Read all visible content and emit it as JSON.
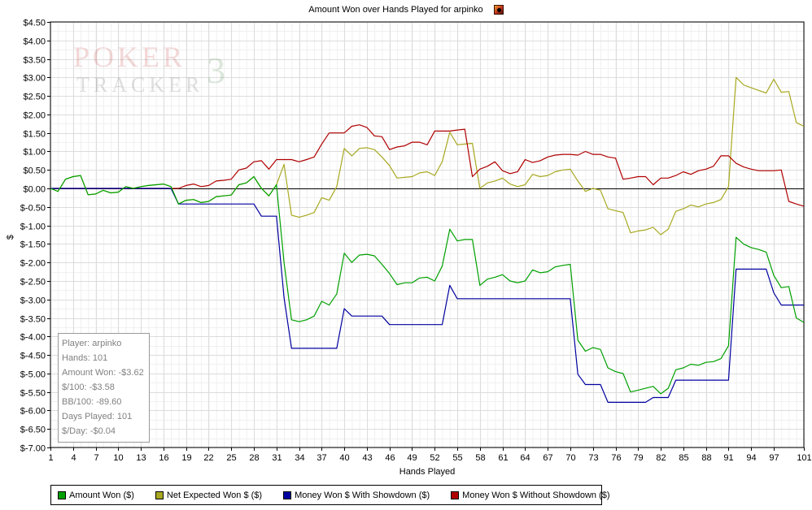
{
  "chart_data": {
    "type": "line",
    "title": "Amount Won over Hands Played for arpinko",
    "xlabel": "Hands Played",
    "ylabel": "$",
    "xlim": [
      1,
      101
    ],
    "ylim": [
      -7.0,
      4.5
    ],
    "y_ticks": [
      4.5,
      4.0,
      3.5,
      3.0,
      2.5,
      2.0,
      1.5,
      1.0,
      0.5,
      0.0,
      -0.5,
      -1.0,
      -1.5,
      -2.0,
      -2.5,
      -3.0,
      -3.5,
      -4.0,
      -4.5,
      -5.0,
      -5.5,
      -6.0,
      -6.5,
      -7.0
    ],
    "y_tick_labels": [
      "$4.50",
      "$4.00",
      "$3.50",
      "$3.00",
      "$2.50",
      "$2.00",
      "$1.50",
      "$1.00",
      "$0.50",
      "$0.00",
      "$-0.50",
      "$-1.00",
      "$-1.50",
      "$-2.00",
      "$-2.50",
      "$-3.00",
      "$-3.50",
      "$-4.00",
      "$-4.50",
      "$-5.00",
      "$-5.50",
      "$-6.00",
      "$-6.50",
      "$-7.00"
    ],
    "x_ticks": [
      1,
      4,
      7,
      10,
      13,
      16,
      19,
      22,
      25,
      28,
      31,
      34,
      37,
      40,
      43,
      46,
      49,
      52,
      55,
      58,
      61,
      64,
      67,
      70,
      73,
      76,
      79,
      82,
      85,
      88,
      91,
      94,
      97,
      101
    ],
    "grid": true,
    "legend_position": "bottom",
    "x": [
      1,
      2,
      3,
      4,
      5,
      6,
      7,
      8,
      9,
      10,
      11,
      12,
      13,
      14,
      15,
      16,
      17,
      18,
      19,
      20,
      21,
      22,
      23,
      24,
      25,
      26,
      27,
      28,
      29,
      30,
      31,
      32,
      33,
      34,
      35,
      36,
      37,
      38,
      39,
      40,
      41,
      42,
      43,
      44,
      45,
      46,
      47,
      48,
      49,
      50,
      51,
      52,
      53,
      54,
      55,
      56,
      57,
      58,
      59,
      60,
      61,
      62,
      63,
      64,
      65,
      66,
      67,
      68,
      69,
      70,
      71,
      72,
      73,
      74,
      75,
      76,
      77,
      78,
      79,
      80,
      81,
      82,
      83,
      84,
      85,
      86,
      87,
      88,
      89,
      90,
      91,
      92,
      93,
      94,
      95,
      96,
      97,
      98,
      99,
      100,
      101
    ],
    "series": [
      {
        "name": "Amount Won ($)",
        "color": "#00a000",
        "values": [
          0.0,
          -0.08,
          0.25,
          0.32,
          0.35,
          -0.17,
          -0.15,
          -0.05,
          -0.12,
          -0.1,
          0.05,
          0.0,
          0.05,
          0.08,
          0.1,
          0.12,
          0.05,
          -0.42,
          -0.32,
          -0.3,
          -0.38,
          -0.35,
          -0.22,
          -0.2,
          -0.18,
          0.1,
          0.15,
          0.32,
          0.0,
          -0.2,
          0.1,
          -2.0,
          -3.55,
          -3.6,
          -3.55,
          -3.45,
          -3.05,
          -3.15,
          -2.85,
          -1.75,
          -2.0,
          -1.8,
          -1.78,
          -1.82,
          -2.05,
          -2.3,
          -2.6,
          -2.55,
          -2.55,
          -2.42,
          -2.4,
          -2.5,
          -2.1,
          -1.1,
          -1.42,
          -1.38,
          -1.38,
          -2.62,
          -2.45,
          -2.4,
          -2.33,
          -2.5,
          -2.55,
          -2.5,
          -2.2,
          -2.28,
          -2.25,
          -2.12,
          -2.08,
          -2.05,
          -4.1,
          -4.4,
          -4.3,
          -4.35,
          -4.85,
          -4.95,
          -5.0,
          -5.5,
          -5.45,
          -5.4,
          -5.35,
          -5.55,
          -5.4,
          -4.9,
          -4.85,
          -4.75,
          -4.78,
          -4.7,
          -4.68,
          -4.6,
          -4.25,
          -1.32,
          -1.5,
          -1.6,
          -1.65,
          -1.72,
          -2.35,
          -2.68,
          -2.65,
          -3.5,
          -3.62
        ]
      },
      {
        "name": "Net Expected Won $ ($)",
        "color": "#a8a820",
        "values": [
          0.0,
          -0.08,
          0.25,
          0.32,
          0.35,
          -0.17,
          -0.15,
          -0.05,
          -0.12,
          -0.1,
          0.05,
          0.0,
          0.05,
          0.08,
          0.1,
          0.12,
          0.05,
          -0.42,
          -0.32,
          -0.3,
          -0.38,
          -0.35,
          -0.22,
          -0.2,
          -0.18,
          0.1,
          0.15,
          0.32,
          0.0,
          -0.2,
          0.1,
          0.65,
          -0.72,
          -0.78,
          -0.72,
          -0.65,
          -0.25,
          -0.32,
          0.05,
          1.08,
          0.88,
          1.08,
          1.1,
          1.05,
          0.85,
          0.62,
          0.28,
          0.3,
          0.32,
          0.42,
          0.45,
          0.35,
          0.72,
          1.52,
          1.18,
          1.2,
          1.22,
          0.0,
          0.15,
          0.2,
          0.28,
          0.12,
          0.05,
          0.1,
          0.38,
          0.32,
          0.35,
          0.45,
          0.5,
          0.52,
          0.2,
          -0.08,
          0.0,
          -0.05,
          -0.55,
          -0.6,
          -0.65,
          -1.2,
          -1.15,
          -1.12,
          -1.05,
          -1.25,
          -1.1,
          -0.62,
          -0.55,
          -0.45,
          -0.5,
          -0.42,
          -0.38,
          -0.3,
          0.05,
          3.0,
          2.8,
          2.72,
          2.65,
          2.58,
          2.95,
          2.6,
          2.62,
          1.78,
          1.68
        ]
      },
      {
        "name": "Money Won $ With Showdown ($)",
        "color": "#0000a0",
        "values": [
          0.0,
          0.0,
          0.0,
          0.0,
          0.0,
          0.0,
          0.0,
          0.0,
          0.0,
          0.0,
          0.0,
          0.0,
          0.0,
          0.0,
          0.0,
          0.0,
          0.0,
          -0.42,
          -0.42,
          -0.42,
          -0.42,
          -0.42,
          -0.42,
          -0.42,
          -0.42,
          -0.42,
          -0.42,
          -0.42,
          -0.75,
          -0.75,
          -0.75,
          -2.95,
          -4.32,
          -4.32,
          -4.32,
          -4.32,
          -4.32,
          -4.32,
          -4.32,
          -3.25,
          -3.45,
          -3.45,
          -3.45,
          -3.45,
          -3.45,
          -3.68,
          -3.68,
          -3.68,
          -3.68,
          -3.68,
          -3.68,
          -3.68,
          -3.68,
          -2.62,
          -2.98,
          -2.98,
          -2.98,
          -2.98,
          -2.98,
          -2.98,
          -2.98,
          -2.98,
          -2.98,
          -2.98,
          -2.98,
          -2.98,
          -2.98,
          -2.98,
          -2.98,
          -2.98,
          -5.02,
          -5.3,
          -5.3,
          -5.3,
          -5.78,
          -5.78,
          -5.78,
          -5.78,
          -5.78,
          -5.78,
          -5.65,
          -5.65,
          -5.65,
          -5.18,
          -5.18,
          -5.18,
          -5.18,
          -5.18,
          -5.18,
          -5.18,
          -5.18,
          -2.18,
          -2.18,
          -2.18,
          -2.18,
          -2.18,
          -2.82,
          -3.15,
          -3.15,
          -3.15,
          -3.15
        ]
      },
      {
        "name": "Money Won $ Without Showdown ($)",
        "color": "#b00000",
        "values": [
          0.0,
          0.0,
          0.0,
          0.0,
          0.0,
          0.0,
          0.0,
          0.0,
          0.0,
          0.0,
          0.0,
          0.0,
          0.0,
          0.0,
          0.0,
          0.0,
          0.0,
          0.0,
          0.08,
          0.12,
          0.05,
          0.08,
          0.2,
          0.22,
          0.25,
          0.5,
          0.55,
          0.72,
          0.75,
          0.52,
          0.78,
          0.78,
          0.78,
          0.72,
          0.78,
          0.85,
          1.2,
          1.5,
          1.5,
          1.5,
          1.68,
          1.72,
          1.65,
          1.42,
          1.4,
          1.05,
          1.12,
          1.15,
          1.25,
          1.25,
          1.18,
          1.55,
          1.55,
          1.55,
          1.58,
          1.6,
          0.32,
          0.52,
          0.6,
          0.72,
          0.48,
          0.4,
          0.45,
          0.78,
          0.7,
          0.75,
          0.85,
          0.9,
          0.92,
          0.92,
          0.9,
          1.0,
          0.92,
          0.92,
          0.85,
          0.82,
          0.25,
          0.28,
          0.32,
          0.32,
          0.1,
          0.28,
          0.28,
          0.35,
          0.45,
          0.38,
          0.48,
          0.52,
          0.6,
          0.88,
          0.88,
          0.68,
          0.58,
          0.52,
          0.48,
          0.48,
          0.48,
          0.5,
          -0.35,
          -0.42,
          -0.48
        ]
      }
    ]
  },
  "watermark": {
    "line1": "POKER",
    "line2": "TRACKER",
    "numeral": "3"
  },
  "info_box": {
    "player": "Player: arpinko",
    "hands": "Hands: 101",
    "amount_won": "Amount Won: -$3.62",
    "per_100": "$/100: -$3.58",
    "bb_100": "BB/100: -89.60",
    "days_played": "Days Played: 101",
    "per_day": "$/Day: -$0.04"
  },
  "icons": {
    "title_icon": "poker-tracker-icon"
  }
}
